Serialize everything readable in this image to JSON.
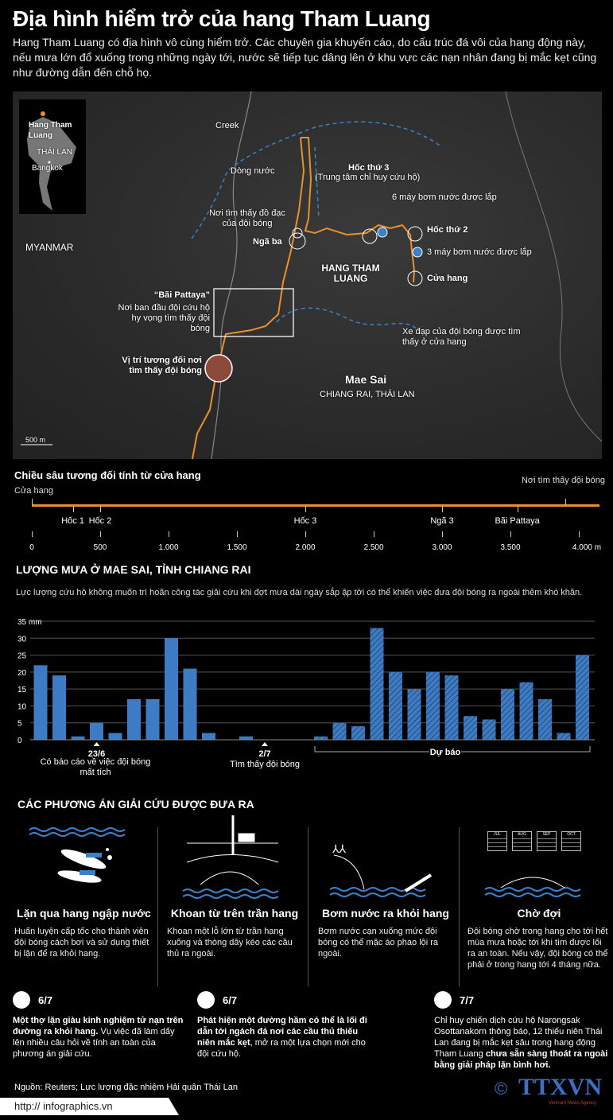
{
  "title": "Địa hình hiểm trở của hang Tham Luang",
  "intro": "Hang Tham Luang có địa hình vô cùng hiểm trở. Các chuyên gia khuyến cáo, do cấu trúc đá vôi của hang động này, nếu mưa lớn đổ xuống trong những ngày tới, nước sẽ tiếp tục dâng lên ở khu vực các nạn nhân đang bị mắc kẹt cũng như đường dẫn đến chỗ họ.",
  "colors": {
    "route": "#e8902a",
    "water": "#3a82c8",
    "bar": "#3d7cc4",
    "found": "#8b4a3c"
  },
  "map": {
    "inset": {
      "cave": "Hang Tham Luang",
      "country": "THÁI LAN",
      "capital": "Bangkok"
    },
    "myanmar": "MYANMAR",
    "creek": "Creek",
    "water_flow": "Dòng nước",
    "belongings": "Nơi tìm thấy đồ đạc của đội bóng",
    "junction": "Ngã ba",
    "chamber3": "Hốc thứ 3",
    "chamber3_sub": "(Trung tâm chỉ huy cứu hộ)",
    "pumps6": "6 máy bơm nước được lắp",
    "chamber2": "Hốc thứ 2",
    "pumps3": "3 máy bơm nước được lắp",
    "entrance": "Cửa hang",
    "cave_name": "HANG THAM LUANG",
    "pattaya": "“Bãi Pattaya”",
    "pattaya_desc": "Nơi ban đầu đội cứu hộ hy vọng tìm thấy đội bóng",
    "found": "Vị trí tương đối nơi tìm thấy đội bóng",
    "bikes": "Xe đạp của đội bóng được tìm thấy ở cửa hang",
    "town": "Mae Sai",
    "province": "CHIANG RAI, THÁI LAN",
    "scale": "500 m"
  },
  "depth": {
    "title": "Chiều sâu tương đối tính từ cửa hang",
    "start": "Cửa hang",
    "end": "Nơi tìm thấy đội bóng",
    "end_m": 3900,
    "markers": [
      {
        "label": "Hốc 1",
        "m": 300
      },
      {
        "label": "Hốc 2",
        "m": 500
      },
      {
        "label": "Hốc 3",
        "m": 2000
      },
      {
        "label": "Ngã 3",
        "m": 3000
      },
      {
        "label": "Bãi Pattaya",
        "m": 3550
      }
    ],
    "ticks": [
      "0",
      "500",
      "1.000",
      "1.500",
      "2.000",
      "2.500",
      "3.000",
      "3.500",
      "4.000 m"
    ]
  },
  "rain": {
    "title": "LƯỢNG MƯA Ở MAE SAI, TỈNH CHIANG RAI",
    "subtitle": "Lực lượng cứu hộ không muốn trì hoãn công tác giải cứu khi đợt mưa dài ngày sắp ập tới có thể khiến việc đưa đội bóng ra ngoài thêm khó khăn.",
    "ann1_date": "23/6",
    "ann1_text": "Có báo cáo về việc đội bóng mất tích",
    "ann2_date": "2/7",
    "ann2_text": "Tìm thấy đội bóng",
    "forecast": "Dự báo"
  },
  "chart_data": {
    "type": "bar",
    "ylabel": "mm",
    "ylim": [
      0,
      35
    ],
    "yticks": [
      "35 mm",
      "30",
      "25",
      "20",
      "15",
      "10",
      "5",
      "0"
    ],
    "grid": true,
    "series": [
      {
        "values": [
          22,
          19,
          1,
          5,
          2,
          12,
          12,
          30,
          21,
          2,
          0,
          1,
          0,
          0,
          0
        ]
      },
      {
        "name": "Dự báo",
        "values": [
          1,
          5,
          4,
          33,
          20,
          15,
          20,
          19,
          7,
          6,
          15,
          17,
          12,
          2,
          25
        ]
      }
    ]
  },
  "options": {
    "title": "CÁC PHƯƠNG ÁN GIẢI CỨU ĐƯỢC ĐƯA RA",
    "items": [
      {
        "title": "Lặn qua hang ngập nước",
        "desc": "Huấn luyện cấp tốc cho thành viên đội bóng cách bơi và sử dụng thiết bị lặn để ra khỏi hang."
      },
      {
        "title": "Khoan từ trên trần hang",
        "desc": "Khoan một lỗ lớn từ trần hang xuống và thòng dây kéo các cầu thủ ra ngoài."
      },
      {
        "title": "Bơm nước ra khỏi hang",
        "desc": "Bơm nước cạn xuống mức đội bóng có thể mặc áo phao lội ra ngoài."
      },
      {
        "title": "Chờ đợi",
        "desc": "Đội bóng chờ trong hang cho tới hết mùa mưa hoặc tới khi tìm được lối ra an toàn. Nếu vậy, đội bóng có thể phải ở trong hang tới 4 tháng nữa."
      }
    ],
    "months": [
      "JUL",
      "AUG",
      "SEP",
      "OCT"
    ]
  },
  "timeline": [
    {
      "date": "6/7",
      "bold": "Một thợ lặn giàu kinh nghiệm tử nạn trên đường ra khỏi hang.",
      "text": " Vụ việc đã làm dấy lên nhiều câu hỏi về tính an toàn của phương án giải cứu."
    },
    {
      "date": "6/7",
      "bold": "Phát hiện một đường hầm có thể là lối đi dẫn tới ngách đá nơi các cầu thủ thiếu niên mắc kẹt",
      "text": ", mở ra một lựa chọn mới cho đội cứu hộ."
    },
    {
      "date": "7/7",
      "text": "Chỉ huy chiến dịch cứu hộ Narongsak Osottanakorn thông báo, 12 thiếu niên Thái Lan đang bị mắc kẹt sâu trong hang động Tham Luang ",
      "bold": "chưa sẵn sàng thoát ra ngoài bằng giải pháp lặn bình hơi."
    }
  ],
  "source": "Nguồn: Reuters; Lực lượng đặc nhiệm Hải quân Thái Lan",
  "url": "http:// infographics.vn",
  "logo": {
    "text": "TTXVN",
    "sub": "Vietnam News Agency",
    "copyright": "©"
  }
}
